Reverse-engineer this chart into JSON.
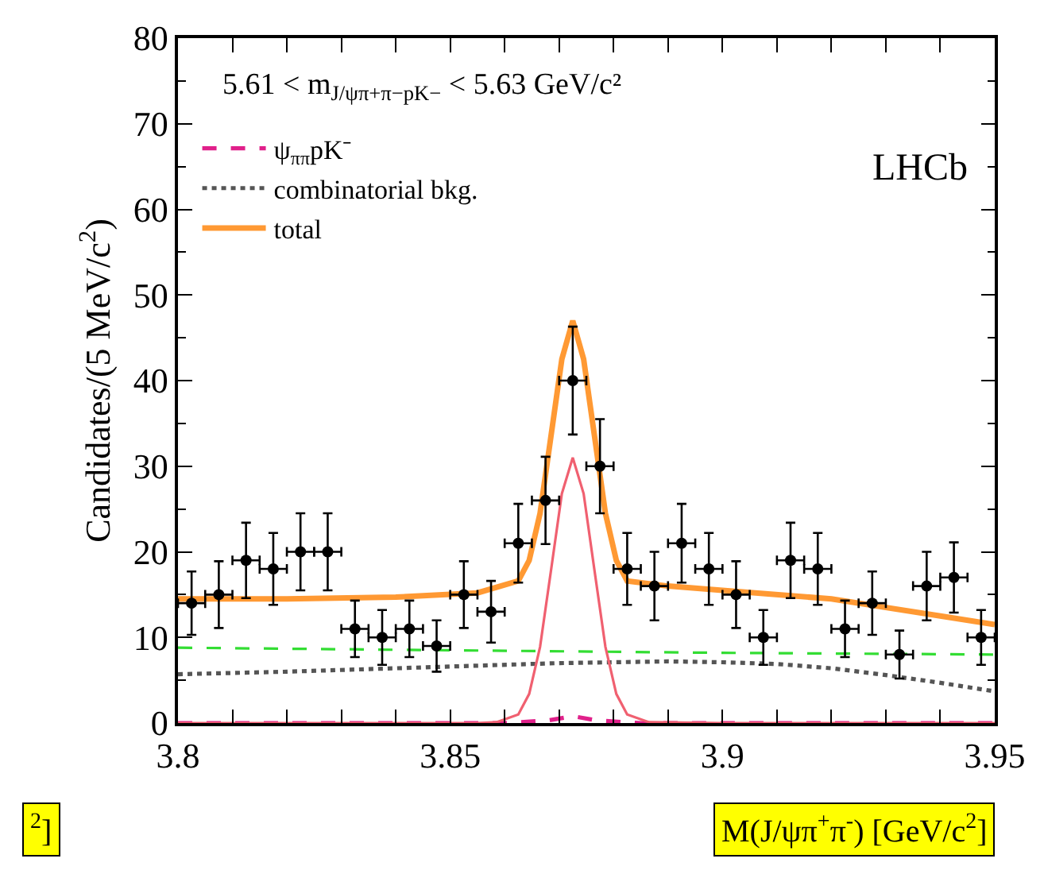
{
  "chart_data": {
    "type": "scatter",
    "xlabel": "M(J/ψπ$^{+}$π$^{-}$) [GeV/c$^{2}$]",
    "ylabel": "Candidates/(5 MeV/c$^{2}$)",
    "annotations": [
      "5.61 < m$_{J/ψπ+π−pK−}$ < 5.63 GeV/c²",
      "LHCb",
      "$^{2}$]"
    ],
    "xlim": [
      3.8,
      3.95
    ],
    "xticks": [
      3.8,
      {
        "value": 3.81,
        "label": null
      },
      {
        "value": 3.82,
        "label": null
      },
      {
        "value": 3.83,
        "label": null
      },
      {
        "value": 3.84,
        "label": null
      },
      3.85,
      {
        "value": 3.86,
        "label": null
      },
      {
        "value": 3.87,
        "label": null
      },
      {
        "value": 3.88,
        "label": null
      },
      {
        "value": 3.89,
        "label": null
      },
      3.9,
      {
        "value": 3.91,
        "label": null
      },
      {
        "value": 3.92,
        "label": null
      },
      {
        "value": 3.93,
        "label": null
      },
      {
        "value": 3.94,
        "label": null
      },
      3.95
    ],
    "ylim": [
      0,
      80
    ],
    "yticks": [
      0,
      10,
      20,
      30,
      40,
      50,
      60,
      70,
      80
    ],
    "legend": "top left",
    "series": [
      {
        "type": "line",
        "color": "#33dd33",
        "line_style": "dashed",
        "marker": "none",
        "x": [
          3.8,
          3.85,
          3.9,
          3.95
        ],
        "values": [
          8.8,
          8.5,
          8.2,
          8.0
        ]
      },
      {
        "type": "line",
        "name": "ψ$_{ππ}$pK⁻",
        "color": "#e0208a",
        "line_style": "dashed",
        "marker": "none",
        "x": [
          3.8,
          3.86,
          3.868,
          3.8725,
          3.877,
          3.885,
          3.95
        ],
        "values": [
          0,
          0,
          0.3,
          0.8,
          0.3,
          0,
          0
        ]
      },
      {
        "type": "line",
        "name": "combinatorial bkg.",
        "color": "#555555",
        "line_style": "dotted",
        "marker": "none",
        "x": [
          3.8,
          3.82,
          3.85,
          3.87,
          3.89,
          3.9,
          3.91,
          3.92,
          3.93,
          3.94,
          3.95
        ],
        "values": [
          5.7,
          6.0,
          6.6,
          7.0,
          7.2,
          7.1,
          6.9,
          6.4,
          5.6,
          4.7,
          3.7
        ]
      },
      {
        "type": "line",
        "color": "#f06070",
        "line_style": "solid",
        "marker": "none",
        "x": [
          3.8,
          3.855,
          3.8585,
          3.8625,
          3.8645,
          3.8665,
          3.8685,
          3.8705,
          3.8725,
          3.8745,
          3.8765,
          3.8785,
          3.8805,
          3.8825,
          3.8865,
          3.9,
          3.95
        ],
        "values": [
          0,
          0,
          0.1,
          1.0,
          3.4,
          8.9,
          17.8,
          26.8,
          31,
          26.8,
          17.8,
          8.9,
          3.4,
          1.0,
          0.1,
          0,
          0
        ]
      },
      {
        "type": "line",
        "name": "total",
        "color": "#ff9933",
        "line_style": "solid",
        "marker": "none",
        "x": [
          3.8,
          3.82,
          3.84,
          3.855,
          3.8625,
          3.8645,
          3.8665,
          3.8685,
          3.8705,
          3.8725,
          3.8745,
          3.8765,
          3.8785,
          3.8805,
          3.8825,
          3.89,
          3.9,
          3.92,
          3.94,
          3.95
        ],
        "values": [
          14.5,
          14.5,
          14.7,
          15.2,
          16.6,
          19.0,
          24.5,
          33.5,
          42.5,
          47,
          42.5,
          33.5,
          24.5,
          19.0,
          16.6,
          16.0,
          15.5,
          14.5,
          12.5,
          11.5
        ]
      },
      {
        "color": "#000000",
        "marker": "circle",
        "x": [
          3.8025,
          3.8075,
          3.8125,
          3.8175,
          3.8225,
          3.8275,
          3.8325,
          3.8375,
          3.8425,
          3.8475,
          3.8525,
          3.8575,
          3.8625,
          3.8675,
          3.8725,
          3.8775,
          3.8825,
          3.8875,
          3.8925,
          3.8975,
          3.9025,
          3.9075,
          3.9125,
          3.9175,
          3.9225,
          3.9275,
          3.9325,
          3.9375,
          3.9425,
          3.9475
        ],
        "values": [
          14,
          15,
          19,
          18,
          20,
          20,
          11,
          10,
          11,
          9,
          15,
          13,
          21,
          26,
          40,
          30,
          18,
          16,
          21,
          18,
          15,
          10,
          19,
          18,
          11,
          14,
          8,
          16,
          17,
          10
        ],
        "errors": [
          3.7,
          3.9,
          4.4,
          4.2,
          4.5,
          4.5,
          3.3,
          3.2,
          3.3,
          3.0,
          3.9,
          3.6,
          4.6,
          5.1,
          6.3,
          5.5,
          4.2,
          4.0,
          4.6,
          4.2,
          3.9,
          3.2,
          4.4,
          4.2,
          3.3,
          3.7,
          2.8,
          4.0,
          4.1,
          3.2
        ],
        "xerrors": [
          0.0025,
          0.0025,
          0.0025,
          0.0025,
          0.0025,
          0.0025,
          0.0025,
          0.0025,
          0.0025,
          0.0025,
          0.0025,
          0.0025,
          0.0025,
          0.0025,
          0.0025,
          0.0025,
          0.0025,
          0.0025,
          0.0025,
          0.0025,
          0.0025,
          0.0025,
          0.0025,
          0.0025,
          0.0025,
          0.0025,
          0.0025,
          0.0025,
          0.0025,
          0.0025
        ]
      }
    ]
  }
}
